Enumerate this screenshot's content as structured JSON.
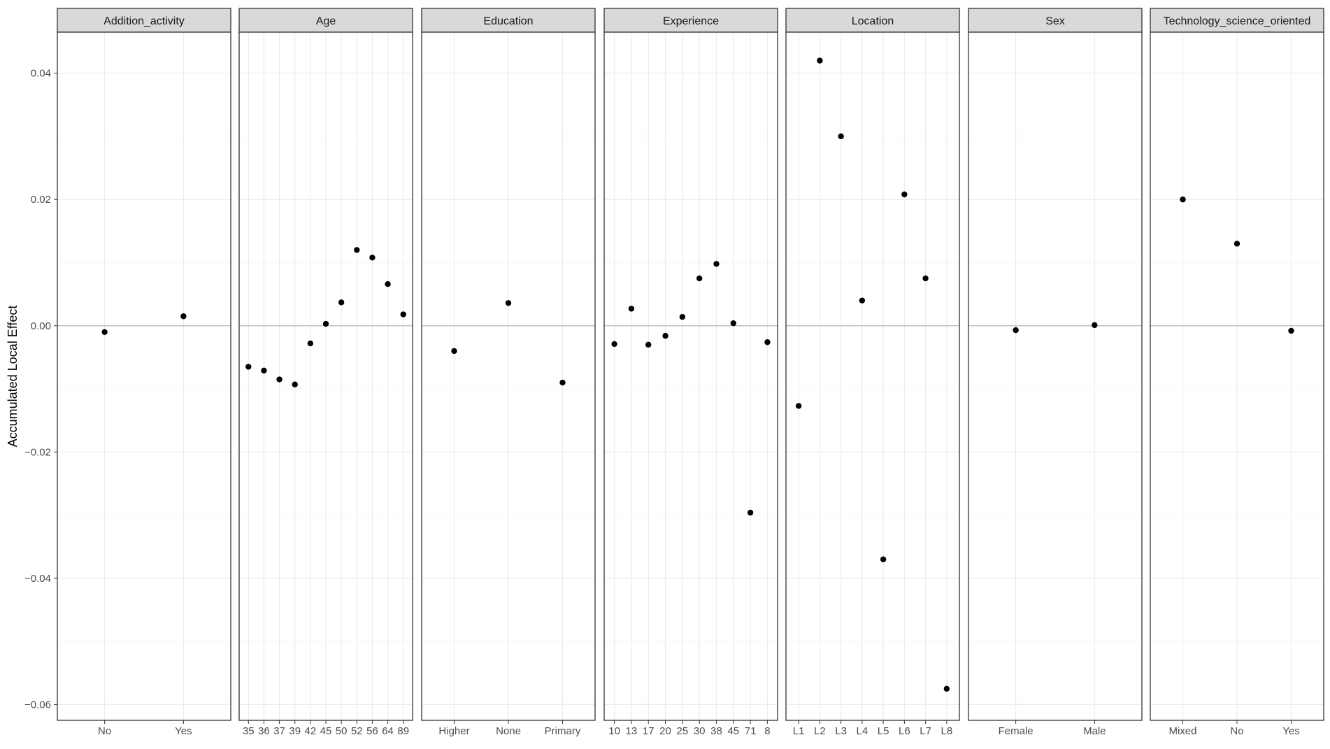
{
  "chart_data": {
    "type": "scatter",
    "ylabel": "Accumulated Local Effect",
    "ylim": [
      -0.0625,
      0.0465
    ],
    "y_ticks": [
      0.04,
      0.02,
      0.0,
      -0.02,
      -0.04,
      -0.06
    ],
    "y_tick_labels": [
      "0.04",
      "0.02",
      "0.00",
      "−0.02",
      "−0.04",
      "−0.06"
    ],
    "grid": true,
    "facets": [
      {
        "label": "Addition_activity",
        "categories": [
          "No",
          "Yes"
        ],
        "values": [
          -0.001,
          0.0015
        ]
      },
      {
        "label": "Age",
        "categories": [
          "35",
          "36",
          "37",
          "39",
          "42",
          "45",
          "50",
          "52",
          "56",
          "64",
          "89"
        ],
        "values": [
          -0.0065,
          -0.0071,
          -0.0085,
          -0.0093,
          -0.0028,
          0.0003,
          0.0037,
          0.012,
          0.0108,
          0.0066,
          0.0018
        ]
      },
      {
        "label": "Education",
        "categories": [
          "Higher",
          "None",
          "Primary"
        ],
        "values": [
          -0.004,
          0.0036,
          -0.009
        ]
      },
      {
        "label": "Experience",
        "categories": [
          "10",
          "13",
          "17",
          "20",
          "25",
          "30",
          "38",
          "45",
          "71",
          "8"
        ],
        "values": [
          -0.0029,
          0.0027,
          -0.003,
          -0.0016,
          0.0014,
          0.0075,
          0.0098,
          0.0004,
          -0.0296,
          -0.0026
        ]
      },
      {
        "label": "Location",
        "categories": [
          "L1",
          "L2",
          "L3",
          "L4",
          "L5",
          "L6",
          "L7",
          "L8"
        ],
        "values": [
          -0.0127,
          0.042,
          0.03,
          0.004,
          -0.037,
          0.0208,
          0.0075,
          -0.0575
        ]
      },
      {
        "label": "Sex",
        "categories": [
          "Female",
          "Male"
        ],
        "values": [
          -0.0007,
          0.0001
        ]
      },
      {
        "label": "Technology_science_oriented",
        "categories": [
          "Mixed",
          "No",
          "Yes"
        ],
        "values": [
          0.02,
          0.013,
          -0.0008
        ]
      }
    ]
  }
}
